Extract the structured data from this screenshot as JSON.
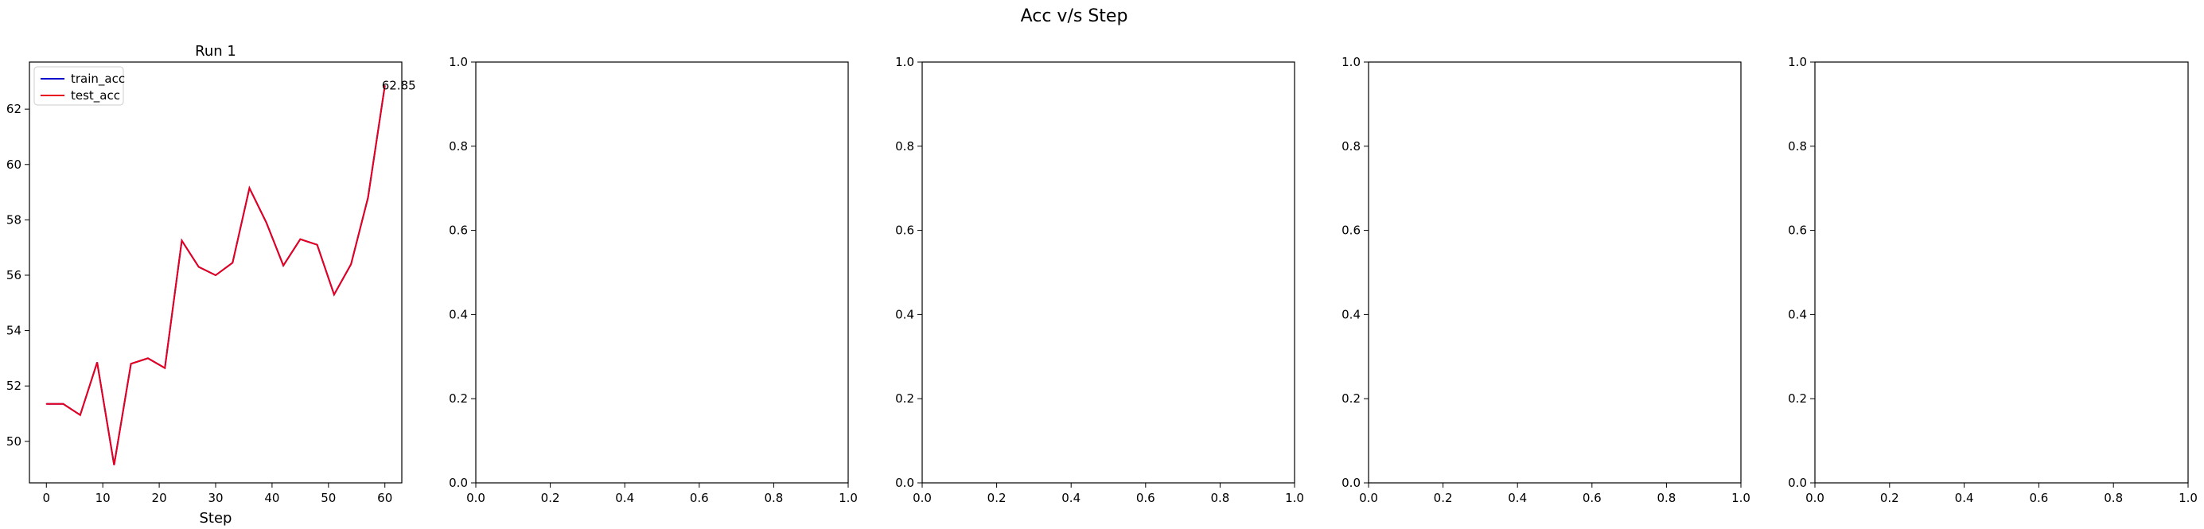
{
  "figure": {
    "title": "Acc v/s Step"
  },
  "chart_data": [
    {
      "type": "line",
      "title": "Run 1",
      "xlabel": "Step",
      "ylabel": "",
      "x": [
        0,
        3,
        6,
        9,
        12,
        15,
        18,
        21,
        24,
        27,
        30,
        33,
        36,
        39,
        42,
        45,
        48,
        51,
        54,
        57,
        60
      ],
      "series": [
        {
          "name": "train_acc",
          "color": "#0000cc",
          "values": [
            51.35,
            51.35,
            50.95,
            52.85,
            49.15,
            52.8,
            53.0,
            52.65,
            57.25,
            56.3,
            56.0,
            56.45,
            59.15,
            57.9,
            56.35,
            57.3,
            57.1,
            55.3,
            56.4,
            58.8,
            62.85
          ]
        },
        {
          "name": "test_acc",
          "color": "#e8001c",
          "values": [
            51.35,
            51.35,
            50.95,
            52.85,
            49.15,
            52.8,
            53.0,
            52.65,
            57.25,
            56.3,
            56.0,
            56.45,
            59.15,
            57.9,
            56.35,
            57.3,
            57.1,
            55.3,
            56.4,
            58.8,
            62.85
          ]
        }
      ],
      "xlim": [
        -3,
        63
      ],
      "ylim": [
        48.5,
        63.7
      ],
      "xticks": [
        0,
        10,
        20,
        30,
        40,
        50,
        60
      ],
      "yticks": [
        50,
        52,
        54,
        56,
        58,
        60,
        62
      ],
      "legend": "upper-left",
      "annotation": {
        "text": "62.85",
        "x": 60,
        "y": 62.85
      },
      "grid": false
    },
    {
      "type": "line",
      "title": "",
      "xlim": [
        0,
        1
      ],
      "ylim": [
        0,
        1
      ],
      "xticks": [
        "0.0",
        "0.2",
        "0.4",
        "0.6",
        "0.8",
        "1.0"
      ],
      "yticks": [
        "0.0",
        "0.2",
        "0.4",
        "0.6",
        "0.8",
        "1.0"
      ],
      "series": []
    },
    {
      "type": "line",
      "title": "",
      "xlim": [
        0,
        1
      ],
      "ylim": [
        0,
        1
      ],
      "xticks": [
        "0.0",
        "0.2",
        "0.4",
        "0.6",
        "0.8",
        "1.0"
      ],
      "yticks": [
        "0.0",
        "0.2",
        "0.4",
        "0.6",
        "0.8",
        "1.0"
      ],
      "series": []
    },
    {
      "type": "line",
      "title": "",
      "xlim": [
        0,
        1
      ],
      "ylim": [
        0,
        1
      ],
      "xticks": [
        "0.0",
        "0.2",
        "0.4",
        "0.6",
        "0.8",
        "1.0"
      ],
      "yticks": [
        "0.0",
        "0.2",
        "0.4",
        "0.6",
        "0.8",
        "1.0"
      ],
      "series": []
    },
    {
      "type": "line",
      "title": "",
      "xlim": [
        0,
        1
      ],
      "ylim": [
        0,
        1
      ],
      "xticks": [
        "0.0",
        "0.2",
        "0.4",
        "0.6",
        "0.8",
        "1.0"
      ],
      "yticks": [
        "0.0",
        "0.2",
        "0.4",
        "0.6",
        "0.8",
        "1.0"
      ],
      "series": []
    }
  ]
}
